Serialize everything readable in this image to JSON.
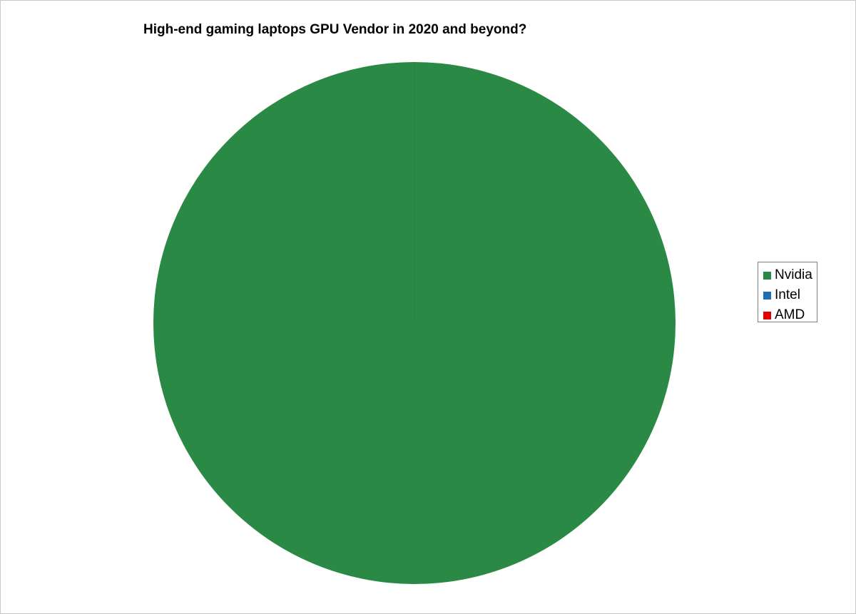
{
  "chart_data": {
    "type": "pie",
    "title": "High-end gaming laptops GPU Vendor in 2020 and beyond?",
    "categories": [
      "Nvidia",
      "Intel",
      "AMD"
    ],
    "values": [
      100,
      0,
      0
    ],
    "colors": [
      "#2a8a45",
      "#1f6eb4",
      "#e00000"
    ],
    "legend_position": "right"
  }
}
